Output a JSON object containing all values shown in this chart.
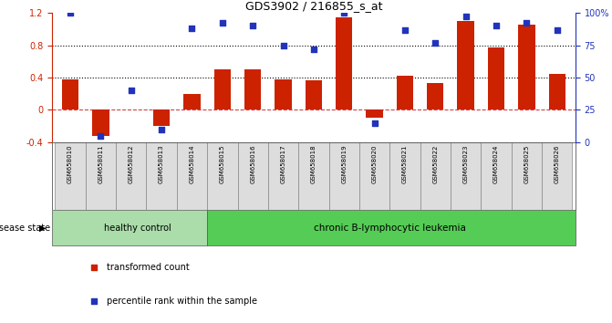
{
  "title": "GDS3902 / 216855_s_at",
  "samples": [
    "GSM658010",
    "GSM658011",
    "GSM658012",
    "GSM658013",
    "GSM658014",
    "GSM658015",
    "GSM658016",
    "GSM658017",
    "GSM658018",
    "GSM658019",
    "GSM658020",
    "GSM658021",
    "GSM658022",
    "GSM658023",
    "GSM658024",
    "GSM658025",
    "GSM658026"
  ],
  "bar_values": [
    0.38,
    -0.32,
    0.0,
    -0.2,
    0.2,
    0.5,
    0.5,
    0.38,
    0.37,
    1.15,
    -0.1,
    0.42,
    0.33,
    1.1,
    0.77,
    1.05,
    0.45
  ],
  "dot_values": [
    100,
    5,
    40,
    10,
    88,
    92,
    90,
    75,
    72,
    100,
    15,
    87,
    77,
    97,
    90,
    92,
    87
  ],
  "healthy_count": 5,
  "ylim_left": [
    -0.4,
    1.2
  ],
  "ylim_right": [
    0,
    100
  ],
  "yticks_left": [
    -0.4,
    0.0,
    0.4,
    0.8,
    1.2
  ],
  "ytick_labels_left": [
    "-0.4",
    "0",
    "0.4",
    "0.8",
    "1.2"
  ],
  "yticks_right": [
    0,
    25,
    50,
    75,
    100
  ],
  "ytick_labels_right": [
    "0",
    "25",
    "50",
    "75",
    "100%"
  ],
  "hlines": [
    0.4,
    0.8
  ],
  "bar_color": "#cc2200",
  "dot_color": "#2233bb",
  "zero_line_color": "#cc4444",
  "hline_color": "#000000",
  "healthy_color": "#aaddaa",
  "leukemia_color": "#55cc55",
  "label_bar": "transformed count",
  "label_dot": "percentile rank within the sample",
  "disease_state_label": "disease state",
  "group1_label": "healthy control",
  "group2_label": "chronic B-lymphocytic leukemia",
  "bg_color": "#ffffff",
  "tick_label_bg": "#dddddd",
  "bar_width": 0.55
}
